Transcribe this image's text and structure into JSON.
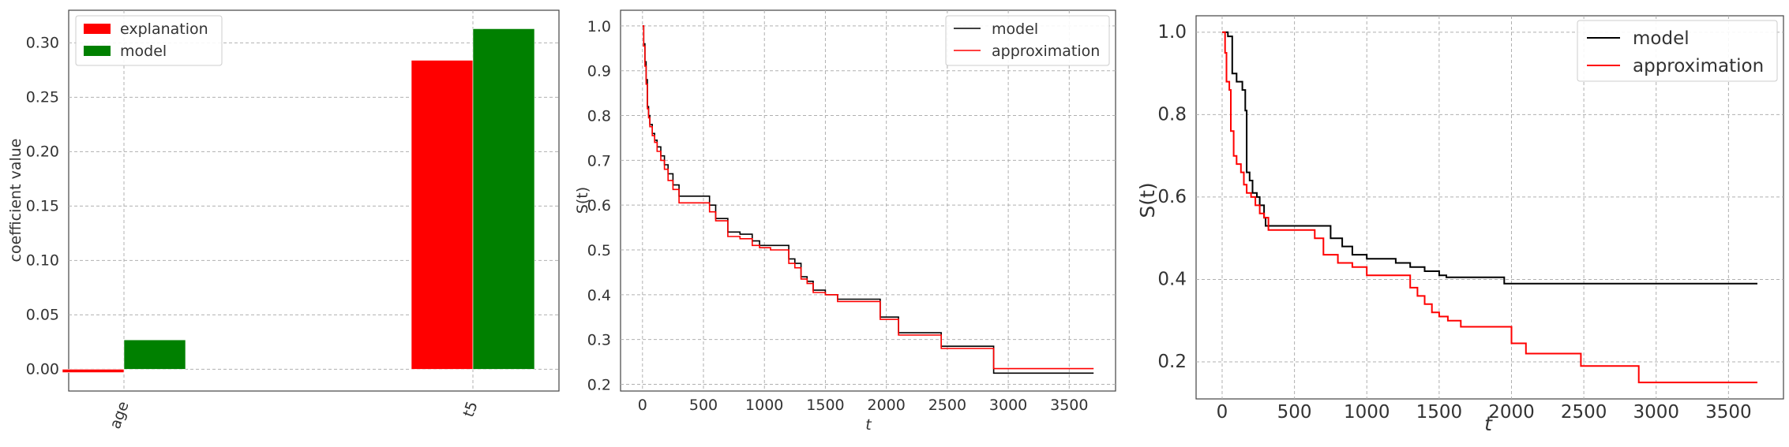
{
  "chart_data": [
    {
      "type": "bar",
      "categories": [
        "age",
        "t5"
      ],
      "series": [
        {
          "name": "explanation",
          "color": "#ff0000",
          "values": [
            -0.003,
            0.284
          ]
        },
        {
          "name": "model",
          "color": "#008000",
          "values": [
            0.027,
            0.313
          ]
        }
      ],
      "ylabel": "coefficient value",
      "xlabel": "",
      "ylim": [
        -0.02,
        0.33
      ],
      "yticks": [
        "0.00",
        "0.05",
        "0.10",
        "0.15",
        "0.20",
        "0.25",
        "0.30"
      ],
      "grid": true,
      "legend": "top-left"
    },
    {
      "type": "line",
      "step": true,
      "xlabel": "t",
      "ylabel": "S(t)",
      "xlim": [
        -180,
        3880
      ],
      "ylim": [
        0.185,
        1.035
      ],
      "xticks": [
        "0",
        "500",
        "1000",
        "1500",
        "2000",
        "2500",
        "3000",
        "3500"
      ],
      "yticks": [
        "0.2",
        "0.3",
        "0.4",
        "0.5",
        "0.6",
        "0.7",
        "0.8",
        "0.9",
        "1.0"
      ],
      "grid": true,
      "legend": "top-right",
      "series": [
        {
          "name": "model",
          "color": "#000000",
          "x": [
            0,
            10,
            20,
            30,
            40,
            50,
            60,
            80,
            100,
            120,
            150,
            180,
            210,
            250,
            300,
            370,
            550,
            600,
            700,
            800,
            900,
            960,
            1050,
            1200,
            1250,
            1300,
            1350,
            1400,
            1500,
            1600,
            1950,
            2100,
            2450,
            2880,
            3700
          ],
          "y": [
            1.0,
            0.96,
            0.92,
            0.88,
            0.82,
            0.8,
            0.78,
            0.76,
            0.745,
            0.73,
            0.71,
            0.69,
            0.67,
            0.645,
            0.62,
            0.62,
            0.6,
            0.57,
            0.54,
            0.535,
            0.52,
            0.51,
            0.51,
            0.48,
            0.47,
            0.44,
            0.43,
            0.41,
            0.4,
            0.39,
            0.35,
            0.315,
            0.285,
            0.225,
            0.225
          ]
        },
        {
          "name": "approximation",
          "color": "#ff0000",
          "x": [
            0,
            10,
            20,
            30,
            40,
            50,
            60,
            80,
            100,
            120,
            150,
            180,
            210,
            250,
            300,
            370,
            550,
            600,
            700,
            800,
            900,
            960,
            1050,
            1200,
            1250,
            1300,
            1350,
            1400,
            1500,
            1600,
            1950,
            2100,
            2450,
            2880,
            3700
          ],
          "y": [
            1.0,
            0.955,
            0.91,
            0.87,
            0.815,
            0.795,
            0.775,
            0.755,
            0.74,
            0.72,
            0.7,
            0.68,
            0.655,
            0.635,
            0.605,
            0.605,
            0.585,
            0.565,
            0.53,
            0.525,
            0.51,
            0.505,
            0.5,
            0.47,
            0.46,
            0.435,
            0.425,
            0.405,
            0.4,
            0.385,
            0.345,
            0.31,
            0.28,
            0.235,
            0.235
          ]
        }
      ]
    },
    {
      "type": "line",
      "step": true,
      "xlabel": "t",
      "ylabel": "S(t)",
      "xlim": [
        -180,
        3880
      ],
      "ylim": [
        0.11,
        1.04
      ],
      "xticks": [
        "0",
        "500",
        "1000",
        "1500",
        "2000",
        "2500",
        "3000",
        "3500"
      ],
      "yticks": [
        "0.2",
        "0.4",
        "0.6",
        "0.8",
        "1.0"
      ],
      "grid": true,
      "legend": "top-right",
      "series": [
        {
          "name": "model",
          "color": "#000000",
          "x": [
            0,
            40,
            70,
            100,
            140,
            160,
            170,
            190,
            210,
            240,
            260,
            290,
            300,
            500,
            750,
            830,
            900,
            1000,
            1100,
            1200,
            1300,
            1400,
            1500,
            1550,
            1950,
            2000,
            2500,
            3000,
            3700
          ],
          "y": [
            1.0,
            0.99,
            0.9,
            0.88,
            0.86,
            0.81,
            0.66,
            0.64,
            0.61,
            0.6,
            0.58,
            0.55,
            0.53,
            0.53,
            0.5,
            0.48,
            0.46,
            0.45,
            0.45,
            0.44,
            0.43,
            0.42,
            0.41,
            0.405,
            0.39,
            0.39,
            0.39,
            0.39,
            0.39
          ]
        },
        {
          "name": "approximation",
          "color": "#ff0000",
          "x": [
            0,
            20,
            30,
            50,
            60,
            80,
            100,
            130,
            150,
            170,
            200,
            230,
            260,
            290,
            320,
            600,
            640,
            700,
            800,
            900,
            1000,
            1100,
            1300,
            1350,
            1400,
            1450,
            1500,
            1560,
            1650,
            1950,
            2000,
            2100,
            2480,
            2880,
            3700
          ],
          "y": [
            1.0,
            0.95,
            0.88,
            0.86,
            0.76,
            0.7,
            0.68,
            0.66,
            0.63,
            0.61,
            0.6,
            0.58,
            0.56,
            0.55,
            0.52,
            0.52,
            0.5,
            0.46,
            0.44,
            0.43,
            0.41,
            0.41,
            0.38,
            0.36,
            0.34,
            0.32,
            0.31,
            0.3,
            0.285,
            0.285,
            0.245,
            0.22,
            0.19,
            0.15,
            0.15
          ]
        }
      ]
    }
  ]
}
